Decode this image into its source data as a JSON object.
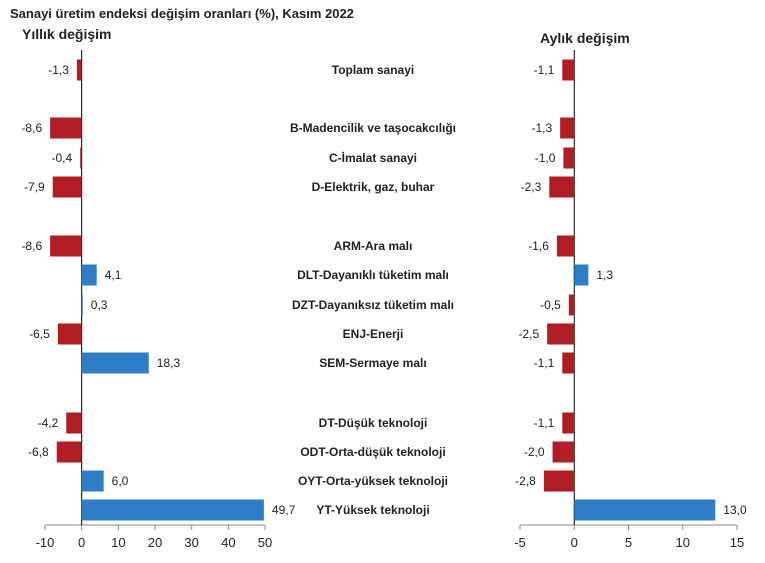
{
  "header": {
    "title": "Sanayi üretim endeksi değişim oranları (%), Kasım 2022"
  },
  "colors": {
    "negative": "#b01e23",
    "positive": "#2e7dc6"
  },
  "chart_data": [
    {
      "type": "bar",
      "orientation": "horizontal",
      "title": "Yıllık değişim",
      "categories": [
        "Toplam sanayi",
        "B-Madencilik ve taşocakcılığı",
        "C-İmalat sanayi",
        "D-Elektrik, gaz, buhar",
        "ARM-Ara malı",
        "DLT-Dayanıklı tüketim malı",
        "DZT-Dayanıksız tüketim malı",
        "ENJ-Enerji",
        "SEM-Sermaye malı",
        "DT-Düşük teknoloji",
        "ODT-Orta-düşük teknoloji",
        "OYT-Orta-yüksek teknoloji",
        "YT-Yüksek teknoloji"
      ],
      "values": [
        -1.3,
        -8.6,
        -0.4,
        -7.9,
        -8.6,
        4.1,
        0.3,
        -6.5,
        18.3,
        -4.2,
        -6.8,
        6.0,
        49.7
      ],
      "value_labels": [
        "-1,3",
        "-8,6",
        "-0,4",
        "-7,9",
        "-8,6",
        "4,1",
        "0,3",
        "-6,5",
        "18,3",
        "-4,2",
        "-6,8",
        "6,0",
        "49,7"
      ],
      "xlim": [
        -10,
        50
      ],
      "xticks": [
        -10,
        0,
        10,
        20,
        30,
        40,
        50
      ],
      "xtick_labels": [
        "-10",
        "0",
        "10",
        "20",
        "30",
        "40",
        "50"
      ]
    },
    {
      "type": "bar",
      "orientation": "horizontal",
      "title": "Aylık değişim",
      "categories": [
        "Toplam sanayi",
        "B-Madencilik ve taşocakcılığı",
        "C-İmalat sanayi",
        "D-Elektrik, gaz, buhar",
        "ARM-Ara malı",
        "DLT-Dayanıklı tüketim malı",
        "DZT-Dayanıksız tüketim malı",
        "ENJ-Enerji",
        "SEM-Sermaye malı",
        "DT-Düşük teknoloji",
        "ODT-Orta-düşük teknoloji",
        "OYT-Orta-yüksek teknoloji",
        "YT-Yüksek teknoloji"
      ],
      "values": [
        -1.1,
        -1.3,
        -1.0,
        -2.3,
        -1.6,
        1.3,
        -0.5,
        -2.5,
        -1.1,
        -1.1,
        -2.0,
        -2.8,
        13.0
      ],
      "value_labels": [
        "-1,1",
        "-1,3",
        "-1,0",
        "-2,3",
        "-1,6",
        "1,3",
        "-0,5",
        "-2,5",
        "-1,1",
        "-1,1",
        "-2,0",
        "-2,8",
        "13,0"
      ],
      "xlim": [
        -5,
        15
      ],
      "xticks": [
        -5,
        0,
        5,
        10,
        15
      ],
      "xtick_labels": [
        "-5",
        "0",
        "5",
        "10",
        "15"
      ]
    }
  ]
}
